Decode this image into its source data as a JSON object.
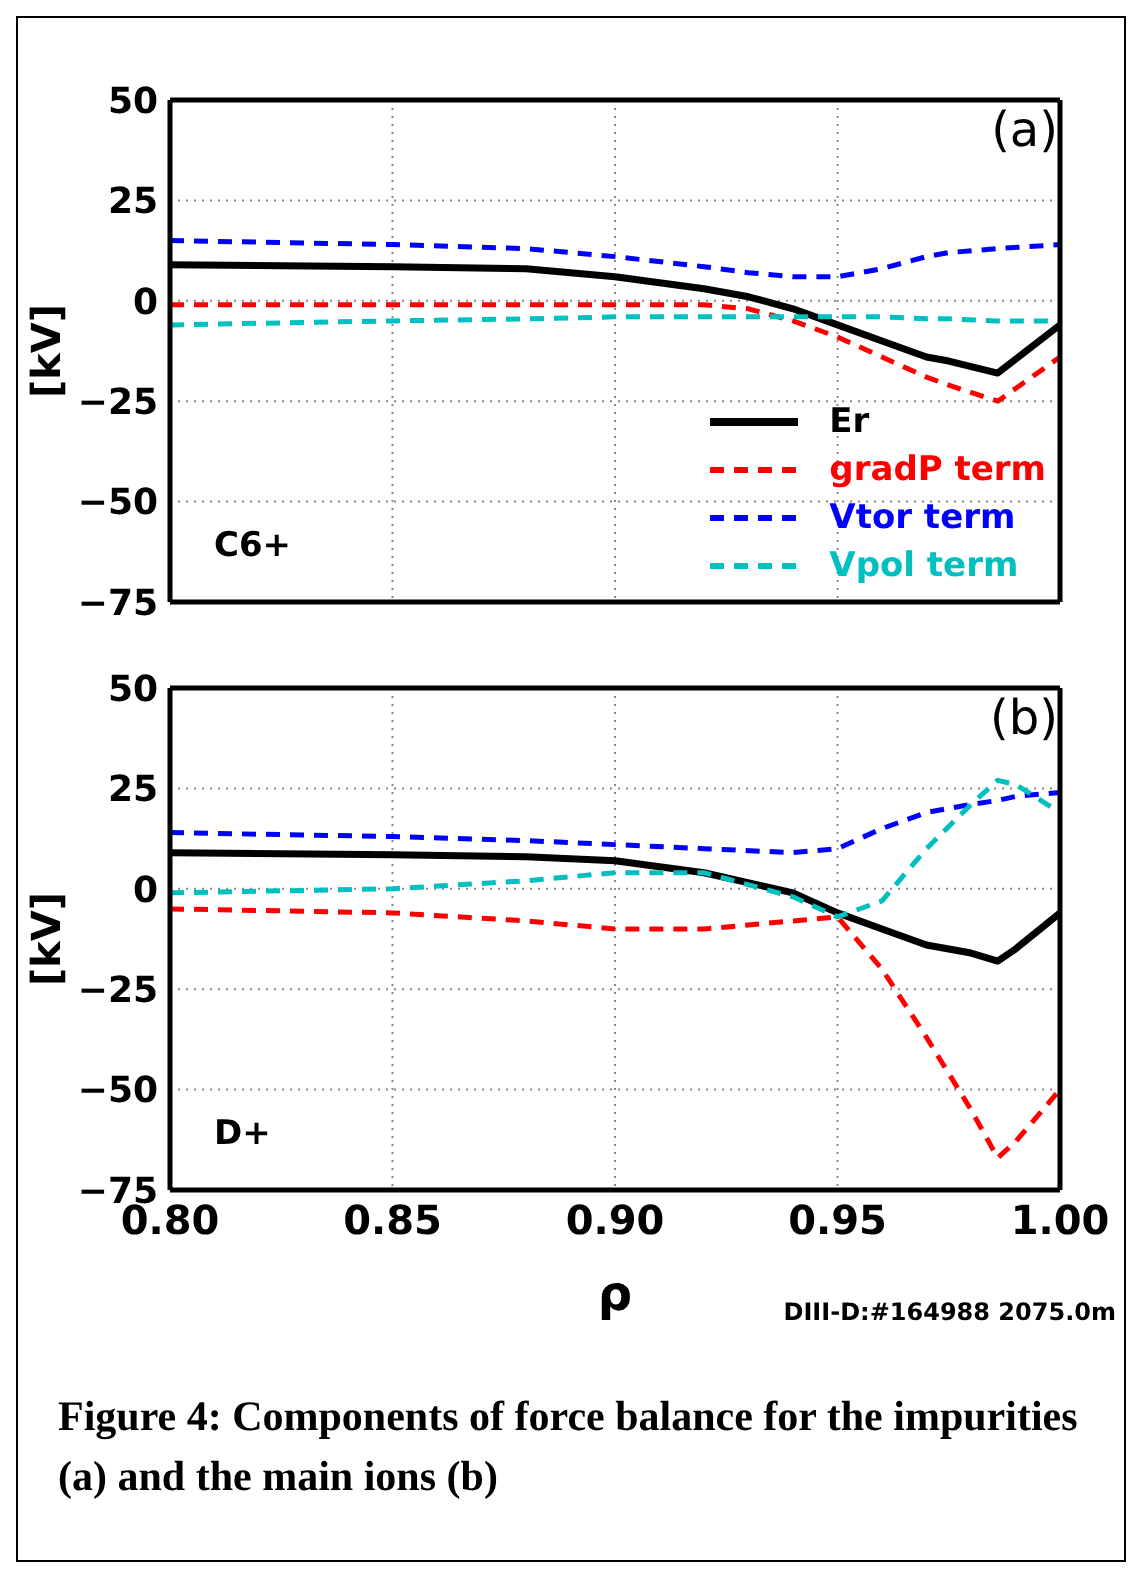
{
  "chart_data": [
    {
      "type": "line",
      "ylabel": "[kV]",
      "annotations": [
        "(a)",
        "C6+"
      ],
      "x": [
        0.8,
        0.85,
        0.88,
        0.9,
        0.92,
        0.93,
        0.94,
        0.95,
        0.96,
        0.97,
        0.975,
        0.986,
        1.0
      ],
      "series": [
        {
          "name": "Er",
          "color": "#000000",
          "line_style": "solid",
          "values": [
            9,
            8.5,
            8,
            6,
            3,
            1,
            -2,
            -6,
            -10,
            -14,
            -15,
            -18,
            -6
          ]
        },
        {
          "name": "gradP term",
          "color": "#ff0000",
          "line_style": "dashed",
          "values": [
            -1,
            -1,
            -1,
            -1,
            -1,
            -2,
            -5,
            -9,
            -14,
            -19,
            -21,
            -25,
            -14
          ]
        },
        {
          "name": "Vtor term",
          "color": "#0000ff",
          "line_style": "dashed",
          "values": [
            15,
            14,
            13,
            11,
            8.5,
            7,
            6,
            6,
            8,
            11,
            12,
            13,
            14
          ]
        },
        {
          "name": "Vpol term",
          "color": "#00bfbf",
          "line_style": "dashed",
          "values": [
            -6,
            -5,
            -4.5,
            -4,
            -4,
            -4,
            -4,
            -4,
            -4,
            -4.5,
            -4.5,
            -5,
            -5
          ]
        }
      ],
      "xlim": [
        0.8,
        1.0
      ],
      "xticks": [
        {
          "value": 0.8,
          "label": null
        },
        {
          "value": 0.85,
          "label": null
        },
        {
          "value": 0.9,
          "label": null
        },
        {
          "value": 0.95,
          "label": null
        },
        {
          "value": 1.0,
          "label": null
        }
      ],
      "ylim": [
        -75,
        50
      ],
      "yticks": [
        {
          "value": -75,
          "label": "−75"
        },
        {
          "value": -50,
          "label": "−50"
        },
        {
          "value": -25,
          "label": "−25"
        },
        0,
        25,
        50
      ],
      "tick_labels": "y",
      "grid": true,
      "legend": "bottom right"
    },
    {
      "type": "line",
      "ylabel": "[kV]",
      "xlabel": "ρ",
      "annotations": [
        "(b)",
        "D+",
        "DIII-D:#164988 2075.0m",
        "Figure 4: Components of force balance for the impurities (a) and the main ions (b)"
      ],
      "x": [
        0.8,
        0.85,
        0.88,
        0.9,
        0.92,
        0.94,
        0.95,
        0.96,
        0.97,
        0.98,
        0.986,
        0.99,
        1.0
      ],
      "series": [
        {
          "color": "#000000",
          "line_style": "solid",
          "values": [
            9,
            8.5,
            8,
            7,
            4,
            -1,
            -6,
            -10,
            -14,
            -16,
            -18,
            -15,
            -6
          ]
        },
        {
          "color": "#ff0000",
          "line_style": "dashed",
          "values": [
            -5,
            -6,
            -8,
            -10,
            -10,
            -8,
            -7,
            -20,
            -37,
            -55,
            -67,
            -63,
            -50
          ]
        },
        {
          "color": "#0000ff",
          "line_style": "dashed",
          "values": [
            14,
            13,
            12,
            11,
            10,
            9,
            10,
            15,
            19,
            21,
            22,
            23,
            24
          ]
        },
        {
          "color": "#00bfbf",
          "line_style": "dashed",
          "values": [
            -1,
            0,
            2,
            4,
            4,
            -2,
            -7,
            -3,
            10,
            21,
            27,
            26,
            19
          ]
        }
      ],
      "xlim": [
        0.8,
        1.0
      ],
      "xticks": [
        {
          "value": 0.8,
          "label": "0.80"
        },
        {
          "value": 0.85,
          "label": "0.85"
        },
        {
          "value": 0.9,
          "label": "0.90"
        },
        {
          "value": 0.95,
          "label": "0.95"
        },
        {
          "value": 1.0,
          "label": "1.00"
        }
      ],
      "ylim": [
        -75,
        50
      ],
      "yticks": [
        {
          "value": -75,
          "label": "−75"
        },
        {
          "value": -50,
          "label": "−50"
        },
        {
          "value": -25,
          "label": "−25"
        },
        0,
        25,
        50
      ],
      "grid": true
    }
  ]
}
